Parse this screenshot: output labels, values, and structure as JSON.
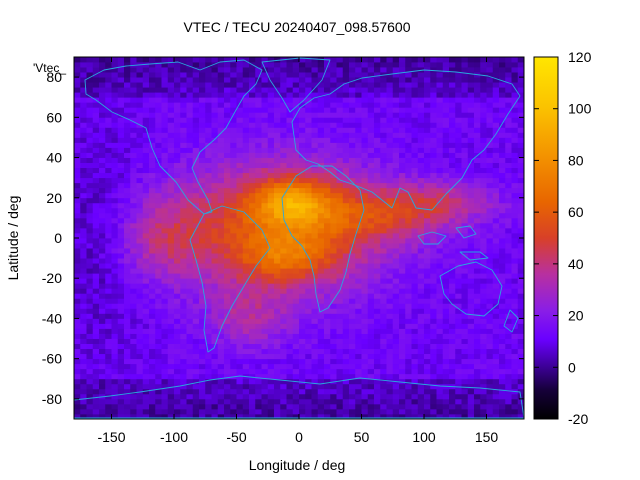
{
  "chart_data": {
    "type": "heatmap",
    "title": "VTEC / TECU 20240407_098.57600",
    "xlabel": "Longitude / deg",
    "ylabel": "Latitude / deg",
    "legend_entry": "'Vtec_",
    "xlim": [
      -180,
      180
    ],
    "ylim": [
      -90,
      90
    ],
    "x_ticks": [
      -150,
      -100,
      -50,
      0,
      50,
      100,
      150
    ],
    "y_ticks": [
      -80,
      -60,
      -40,
      -20,
      0,
      20,
      40,
      60,
      80
    ],
    "colorbar": {
      "range": [
        -20,
        120
      ],
      "ticks": [
        -20,
        0,
        20,
        40,
        60,
        80,
        100,
        120
      ],
      "colormap": [
        "#000000",
        "#2a0070",
        "#6a00ff",
        "#9a2ad4",
        "#d0305a",
        "#e05a00",
        "#f3a000",
        "#ffe600"
      ]
    },
    "grid": {
      "lon_step": 5,
      "lat_step": 2.5,
      "description": "Gridded VTEC (TECU); background ~12 TECU, equatorial anomaly peaking ~95-110 TECU near lon -10..10, lat 0..25; depressed polar values ~2-8 TECU"
    },
    "coastlines": "World continent outlines (simplified)"
  }
}
